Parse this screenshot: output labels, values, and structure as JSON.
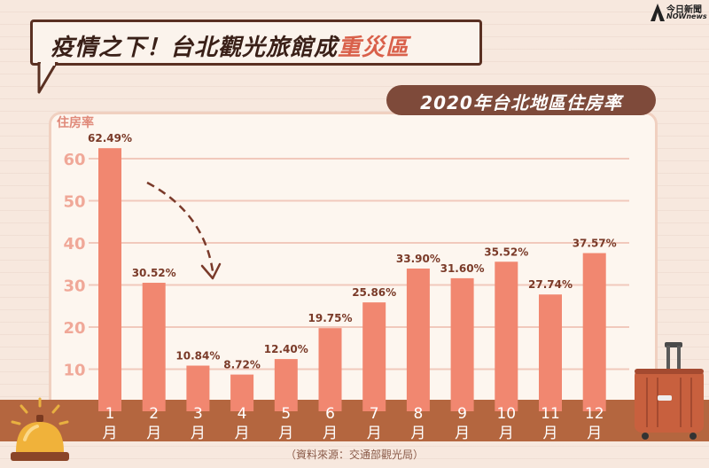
{
  "header": {
    "title_main": "疫情之下！台北觀光旅館成",
    "title_highlight": "重災區"
  },
  "logo": {
    "line1": "今日新聞",
    "line2": "NOWnews"
  },
  "source_text": "（資料來源：交通部觀光局）",
  "colors": {
    "bar": "#f18770",
    "accent": "#d9604a",
    "strip": "#b4663f",
    "pill": "#7e4a3a"
  },
  "chart_data": {
    "type": "bar",
    "title": "2020年台北地區住房率",
    "ylabel": "住房率",
    "xlabel": "",
    "ylim": [
      0,
      70
    ],
    "yticks": [
      10,
      20,
      30,
      40,
      50,
      60
    ],
    "grid": true,
    "categories": [
      "1月",
      "2月",
      "3月",
      "4月",
      "5月",
      "6月",
      "7月",
      "8月",
      "9月",
      "10月",
      "11月",
      "12月"
    ],
    "month_numbers": [
      "1",
      "2",
      "3",
      "4",
      "5",
      "6",
      "7",
      "8",
      "9",
      "10",
      "11",
      "12"
    ],
    "month_unit": "月",
    "values": [
      62.49,
      30.52,
      10.84,
      8.72,
      12.4,
      19.75,
      25.86,
      33.9,
      31.6,
      35.52,
      27.74,
      37.57
    ],
    "value_labels": [
      "62.49%",
      "30.52%",
      "10.84%",
      "8.72%",
      "12.40%",
      "19.75%",
      "25.86%",
      "33.90%",
      "31.60%",
      "35.52%",
      "27.74%",
      "37.57%"
    ]
  }
}
